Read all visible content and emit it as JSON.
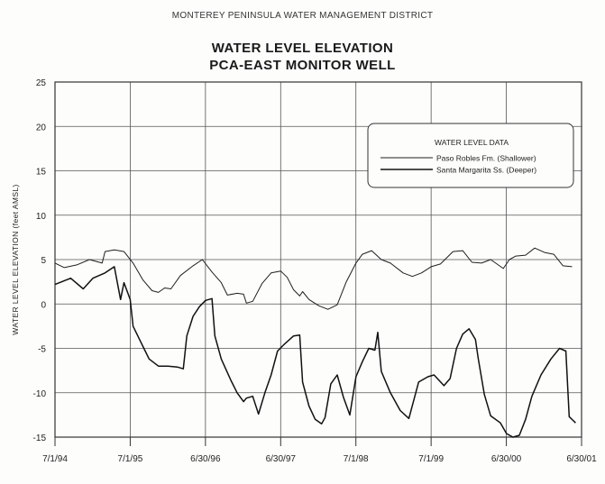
{
  "header": "MONTEREY PENINSULA WATER MANAGEMENT DISTRICT",
  "title_line1": "WATER LEVEL ELEVATION",
  "title_line2": "PCA-EAST MONITOR WELL",
  "chart_data": {
    "type": "line",
    "ylabel": "WATER LEVEL ELEVATION (feet AMSL)",
    "xlabel": "",
    "ylim": [
      -15,
      25
    ],
    "yticks": [
      25,
      20,
      15,
      10,
      5,
      0,
      -5,
      -10,
      -15
    ],
    "xlim": [
      "1994-07-01",
      "2001-06-30"
    ],
    "xticks": [
      "7/1/94",
      "7/1/95",
      "6/30/96",
      "6/30/97",
      "7/1/98",
      "7/1/99",
      "6/30/00",
      "6/30/01"
    ],
    "grid": true,
    "legend": {
      "title": "WATER LEVEL DATA",
      "placement": "upper-right",
      "entries": [
        "Paso Robles Fm. (Shallower)",
        "Santa Margarita Ss. (Deeper)"
      ]
    },
    "series": [
      {
        "name": "Paso Robles Fm. (Shallower)",
        "points": [
          [
            "1994-07-01",
            4.6
          ],
          [
            "1994-08-15",
            4.1
          ],
          [
            "1994-10-15",
            4.4
          ],
          [
            "1994-12-15",
            5.0
          ],
          [
            "1995-02-15",
            4.6
          ],
          [
            "1995-03-01",
            5.9
          ],
          [
            "1995-04-15",
            6.1
          ],
          [
            "1995-06-01",
            5.9
          ],
          [
            "1995-07-15",
            4.6
          ],
          [
            "1995-09-01",
            2.7
          ],
          [
            "1995-10-15",
            1.5
          ],
          [
            "1995-11-15",
            1.3
          ],
          [
            "1995-12-15",
            1.8
          ],
          [
            "1996-01-15",
            1.7
          ],
          [
            "1996-03-01",
            3.2
          ],
          [
            "1996-05-01",
            4.3
          ],
          [
            "1996-06-15",
            5.0
          ],
          [
            "1996-08-01",
            3.6
          ],
          [
            "1996-09-15",
            2.4
          ],
          [
            "1996-10-15",
            1.0
          ],
          [
            "1996-12-01",
            1.2
          ],
          [
            "1997-01-01",
            1.1
          ],
          [
            "1997-01-15",
            0.1
          ],
          [
            "1997-02-15",
            0.3
          ],
          [
            "1997-04-01",
            2.3
          ],
          [
            "1997-05-15",
            3.5
          ],
          [
            "1997-07-01",
            3.7
          ],
          [
            "1997-08-01",
            3.0
          ],
          [
            "1997-09-01",
            1.6
          ],
          [
            "1997-10-01",
            0.9
          ],
          [
            "1997-10-15",
            1.4
          ],
          [
            "1997-11-15",
            0.5
          ],
          [
            "1998-01-01",
            -0.2
          ],
          [
            "1998-02-15",
            -0.6
          ],
          [
            "1998-04-01",
            -0.1
          ],
          [
            "1998-05-15",
            2.5
          ],
          [
            "1998-07-01",
            4.6
          ],
          [
            "1998-08-01",
            5.6
          ],
          [
            "1998-09-15",
            6.0
          ],
          [
            "1998-11-01",
            5.0
          ],
          [
            "1998-12-15",
            4.6
          ],
          [
            "1999-02-15",
            3.5
          ],
          [
            "1999-04-01",
            3.1
          ],
          [
            "1999-05-15",
            3.5
          ],
          [
            "1999-07-01",
            4.2
          ],
          [
            "1999-08-15",
            4.5
          ],
          [
            "1999-10-15",
            5.9
          ],
          [
            "1999-12-01",
            6.0
          ],
          [
            "2000-01-15",
            4.7
          ],
          [
            "2000-03-01",
            4.6
          ],
          [
            "2000-04-15",
            5.0
          ],
          [
            "2000-06-15",
            4.0
          ],
          [
            "2000-07-15",
            5.0
          ],
          [
            "2000-08-15",
            5.4
          ],
          [
            "2000-10-01",
            5.5
          ],
          [
            "2000-11-15",
            6.3
          ],
          [
            "2001-01-01",
            5.8
          ],
          [
            "2001-02-15",
            5.6
          ],
          [
            "2001-04-01",
            4.3
          ],
          [
            "2001-05-15",
            4.2
          ]
        ]
      },
      {
        "name": "Santa Margarita Ss. (Deeper)",
        "points": [
          [
            "1994-07-01",
            2.2
          ],
          [
            "1994-09-15",
            2.9
          ],
          [
            "1994-11-15",
            1.7
          ],
          [
            "1995-01-01",
            2.9
          ],
          [
            "1995-03-01",
            3.5
          ],
          [
            "1995-04-15",
            4.2
          ],
          [
            "1995-05-15",
            0.5
          ],
          [
            "1995-06-01",
            2.4
          ],
          [
            "1995-07-01",
            0.5
          ],
          [
            "1995-07-15",
            -2.5
          ],
          [
            "1995-09-01",
            -4.8
          ],
          [
            "1995-10-01",
            -6.2
          ],
          [
            "1995-11-15",
            -7.0
          ],
          [
            "1996-01-01",
            -7.0
          ],
          [
            "1996-02-15",
            -7.1
          ],
          [
            "1996-03-15",
            -7.3
          ],
          [
            "1996-04-01",
            -3.6
          ],
          [
            "1996-05-01",
            -1.4
          ],
          [
            "1996-06-01",
            -0.3
          ],
          [
            "1996-07-01",
            0.4
          ],
          [
            "1996-08-01",
            0.6
          ],
          [
            "1996-08-15",
            -3.6
          ],
          [
            "1996-09-15",
            -6.2
          ],
          [
            "1996-11-01",
            -8.6
          ],
          [
            "1996-12-01",
            -10.0
          ],
          [
            "1997-01-01",
            -11.0
          ],
          [
            "1997-01-15",
            -10.6
          ],
          [
            "1997-02-15",
            -10.4
          ],
          [
            "1997-03-15",
            -12.4
          ],
          [
            "1997-04-15",
            -10.0
          ],
          [
            "1997-05-15",
            -8.0
          ],
          [
            "1997-06-15",
            -5.3
          ],
          [
            "1997-07-15",
            -4.6
          ],
          [
            "1997-09-01",
            -3.6
          ],
          [
            "1997-10-01",
            -3.5
          ],
          [
            "1997-10-15",
            -8.8
          ],
          [
            "1997-11-15",
            -11.5
          ],
          [
            "1997-12-15",
            -13.0
          ],
          [
            "1998-01-15",
            -13.5
          ],
          [
            "1998-02-01",
            -12.8
          ],
          [
            "1998-03-01",
            -9.0
          ],
          [
            "1998-04-01",
            -8.0
          ],
          [
            "1998-05-01",
            -10.5
          ],
          [
            "1998-06-01",
            -12.5
          ],
          [
            "1998-07-01",
            -8.2
          ],
          [
            "1998-08-01",
            -6.5
          ],
          [
            "1998-09-01",
            -5.0
          ],
          [
            "1998-10-01",
            -5.2
          ],
          [
            "1998-10-15",
            -3.2
          ],
          [
            "1998-11-01",
            -7.6
          ],
          [
            "1998-12-15",
            -10.0
          ],
          [
            "1999-02-01",
            -12.0
          ],
          [
            "1999-03-15",
            -12.9
          ],
          [
            "1999-05-01",
            -8.8
          ],
          [
            "1999-06-15",
            -8.2
          ],
          [
            "1999-07-15",
            -8.0
          ],
          [
            "1999-09-01",
            -9.2
          ],
          [
            "1999-10-01",
            -8.4
          ],
          [
            "1999-11-01",
            -5.0
          ],
          [
            "1999-12-01",
            -3.4
          ],
          [
            "2000-01-01",
            -2.8
          ],
          [
            "2000-02-01",
            -4.0
          ],
          [
            "2000-02-15",
            -6.2
          ],
          [
            "2000-03-15",
            -10.2
          ],
          [
            "2000-04-15",
            -12.6
          ],
          [
            "2000-06-01",
            -13.4
          ],
          [
            "2000-07-01",
            -14.6
          ],
          [
            "2000-08-01",
            -15.0
          ],
          [
            "2000-09-01",
            -14.8
          ],
          [
            "2000-10-01",
            -13.0
          ],
          [
            "2000-11-01",
            -10.4
          ],
          [
            "2000-12-15",
            -8.0
          ],
          [
            "2001-02-01",
            -6.2
          ],
          [
            "2001-03-15",
            -5.0
          ],
          [
            "2001-04-15",
            -5.3
          ],
          [
            "2001-05-01",
            -12.7
          ],
          [
            "2001-06-01",
            -13.4
          ]
        ]
      }
    ]
  }
}
